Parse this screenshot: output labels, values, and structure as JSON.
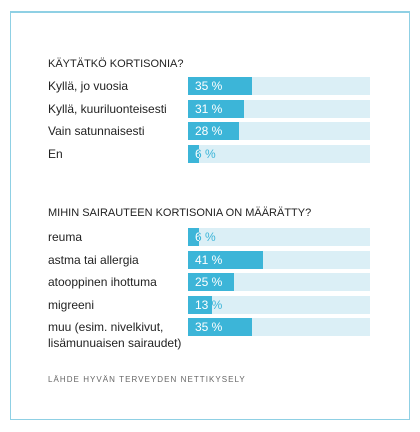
{
  "chart_data": [
    {
      "type": "bar",
      "orientation": "horizontal",
      "title": "KÄYTÄTKÖ KORTISONIA?",
      "categories": [
        "Kyllä, jo vuosia",
        "Kyllä, kuuriluonteisesti",
        "Vain satunnaisesti",
        "En"
      ],
      "values": [
        35,
        31,
        28,
        6
      ],
      "value_labels": [
        "35 %",
        "31 %",
        "28 %",
        "6 %"
      ],
      "xlim": [
        0,
        100
      ],
      "grid": false,
      "legend": false
    },
    {
      "type": "bar",
      "orientation": "horizontal",
      "title": "MIHIN SAIRAUTEEN KORTISONIA ON MÄÄRÄTTY?",
      "categories": [
        "reuma",
        "astma tai allergia",
        "atooppinen ihottuma",
        "migreeni",
        "muu (esim. nivelkivut, lisämunuaisen sairaudet)"
      ],
      "values": [
        6,
        41,
        25,
        13,
        35
      ],
      "value_labels": [
        "6 %",
        "41 %",
        "25 %",
        "13 %",
        "35 %"
      ],
      "xlim": [
        0,
        100
      ],
      "grid": false,
      "legend": false
    }
  ],
  "source": "LÄHDE HYVÄN TERVEYDEN NETTIKYSELY",
  "colors": {
    "bar_fill": "#3cb5d8",
    "bar_track": "#dbeff6",
    "frame": "#8fd0e4",
    "text": "#222222",
    "source_text": "#666666"
  }
}
